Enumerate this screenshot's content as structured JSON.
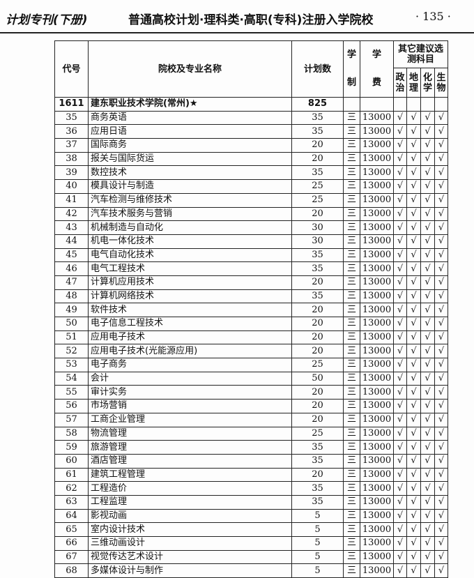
{
  "header": {
    "book": "计划专刊(下册)",
    "section": "普通高校计划·理科类·高职(专科)注册入学院校",
    "page": "· 135 ·"
  },
  "table": {
    "columns": {
      "code": "代号",
      "name": "院校及专业名称",
      "plan": "计划数",
      "years": "学制",
      "fee": "学费",
      "other": "其它建议选测科目",
      "subjects": [
        "政治",
        "地理",
        "化学",
        "生物"
      ]
    },
    "school": {
      "code": "1611",
      "name": "建东职业技术学院(常州)★",
      "plan": "825"
    },
    "check": "√",
    "rows": [
      {
        "code": "35",
        "name": "商务英语",
        "plan": "35",
        "years": "三",
        "fee": "13000"
      },
      {
        "code": "36",
        "name": "应用日语",
        "plan": "35",
        "years": "三",
        "fee": "13000"
      },
      {
        "code": "37",
        "name": "国际商务",
        "plan": "20",
        "years": "三",
        "fee": "13000"
      },
      {
        "code": "38",
        "name": "报关与国际货运",
        "plan": "20",
        "years": "三",
        "fee": "13000"
      },
      {
        "code": "39",
        "name": "数控技术",
        "plan": "35",
        "years": "三",
        "fee": "13000"
      },
      {
        "code": "40",
        "name": "模具设计与制造",
        "plan": "25",
        "years": "三",
        "fee": "13000"
      },
      {
        "code": "41",
        "name": "汽车检测与维修技术",
        "plan": "25",
        "years": "三",
        "fee": "13000"
      },
      {
        "code": "42",
        "name": "汽车技术服务与营销",
        "plan": "20",
        "years": "三",
        "fee": "13000"
      },
      {
        "code": "43",
        "name": "机械制造与自动化",
        "plan": "30",
        "years": "三",
        "fee": "13000"
      },
      {
        "code": "44",
        "name": "机电一体化技术",
        "plan": "30",
        "years": "三",
        "fee": "13000"
      },
      {
        "code": "45",
        "name": "电气自动化技术",
        "plan": "35",
        "years": "三",
        "fee": "13000"
      },
      {
        "code": "46",
        "name": "电气工程技术",
        "plan": "35",
        "years": "三",
        "fee": "13000"
      },
      {
        "code": "47",
        "name": "计算机应用技术",
        "plan": "20",
        "years": "三",
        "fee": "13000"
      },
      {
        "code": "48",
        "name": "计算机网络技术",
        "plan": "35",
        "years": "三",
        "fee": "13000"
      },
      {
        "code": "49",
        "name": "软件技术",
        "plan": "20",
        "years": "三",
        "fee": "13000"
      },
      {
        "code": "50",
        "name": "电子信息工程技术",
        "plan": "20",
        "years": "三",
        "fee": "13000"
      },
      {
        "code": "51",
        "name": "应用电子技术",
        "plan": "20",
        "years": "三",
        "fee": "13000"
      },
      {
        "code": "52",
        "name": "应用电子技术(光能源应用)",
        "plan": "20",
        "years": "三",
        "fee": "13000"
      },
      {
        "code": "53",
        "name": "电子商务",
        "plan": "25",
        "years": "三",
        "fee": "13000"
      },
      {
        "code": "54",
        "name": "会计",
        "plan": "50",
        "years": "三",
        "fee": "13000"
      },
      {
        "code": "55",
        "name": "审计实务",
        "plan": "20",
        "years": "三",
        "fee": "13000"
      },
      {
        "code": "56",
        "name": "市场营销",
        "plan": "20",
        "years": "三",
        "fee": "13000"
      },
      {
        "code": "57",
        "name": "工商企业管理",
        "plan": "20",
        "years": "三",
        "fee": "13000"
      },
      {
        "code": "58",
        "name": "物流管理",
        "plan": "25",
        "years": "三",
        "fee": "13000"
      },
      {
        "code": "59",
        "name": "旅游管理",
        "plan": "35",
        "years": "三",
        "fee": "13000"
      },
      {
        "code": "60",
        "name": "酒店管理",
        "plan": "35",
        "years": "三",
        "fee": "13000"
      },
      {
        "code": "61",
        "name": "建筑工程管理",
        "plan": "20",
        "years": "三",
        "fee": "13000"
      },
      {
        "code": "62",
        "name": "工程造价",
        "plan": "35",
        "years": "三",
        "fee": "13000"
      },
      {
        "code": "63",
        "name": "工程监理",
        "plan": "35",
        "years": "三",
        "fee": "13000"
      },
      {
        "code": "64",
        "name": "影视动画",
        "plan": "5",
        "years": "三",
        "fee": "13000"
      },
      {
        "code": "65",
        "name": "室内设计技术",
        "plan": "5",
        "years": "三",
        "fee": "13000"
      },
      {
        "code": "66",
        "name": "三维动画设计",
        "plan": "5",
        "years": "三",
        "fee": "13000"
      },
      {
        "code": "67",
        "name": "视觉传达艺术设计",
        "plan": "5",
        "years": "三",
        "fee": "13000"
      },
      {
        "code": "68",
        "name": "多媒体设计与制作",
        "plan": "5",
        "years": "三",
        "fee": "13000"
      }
    ]
  }
}
